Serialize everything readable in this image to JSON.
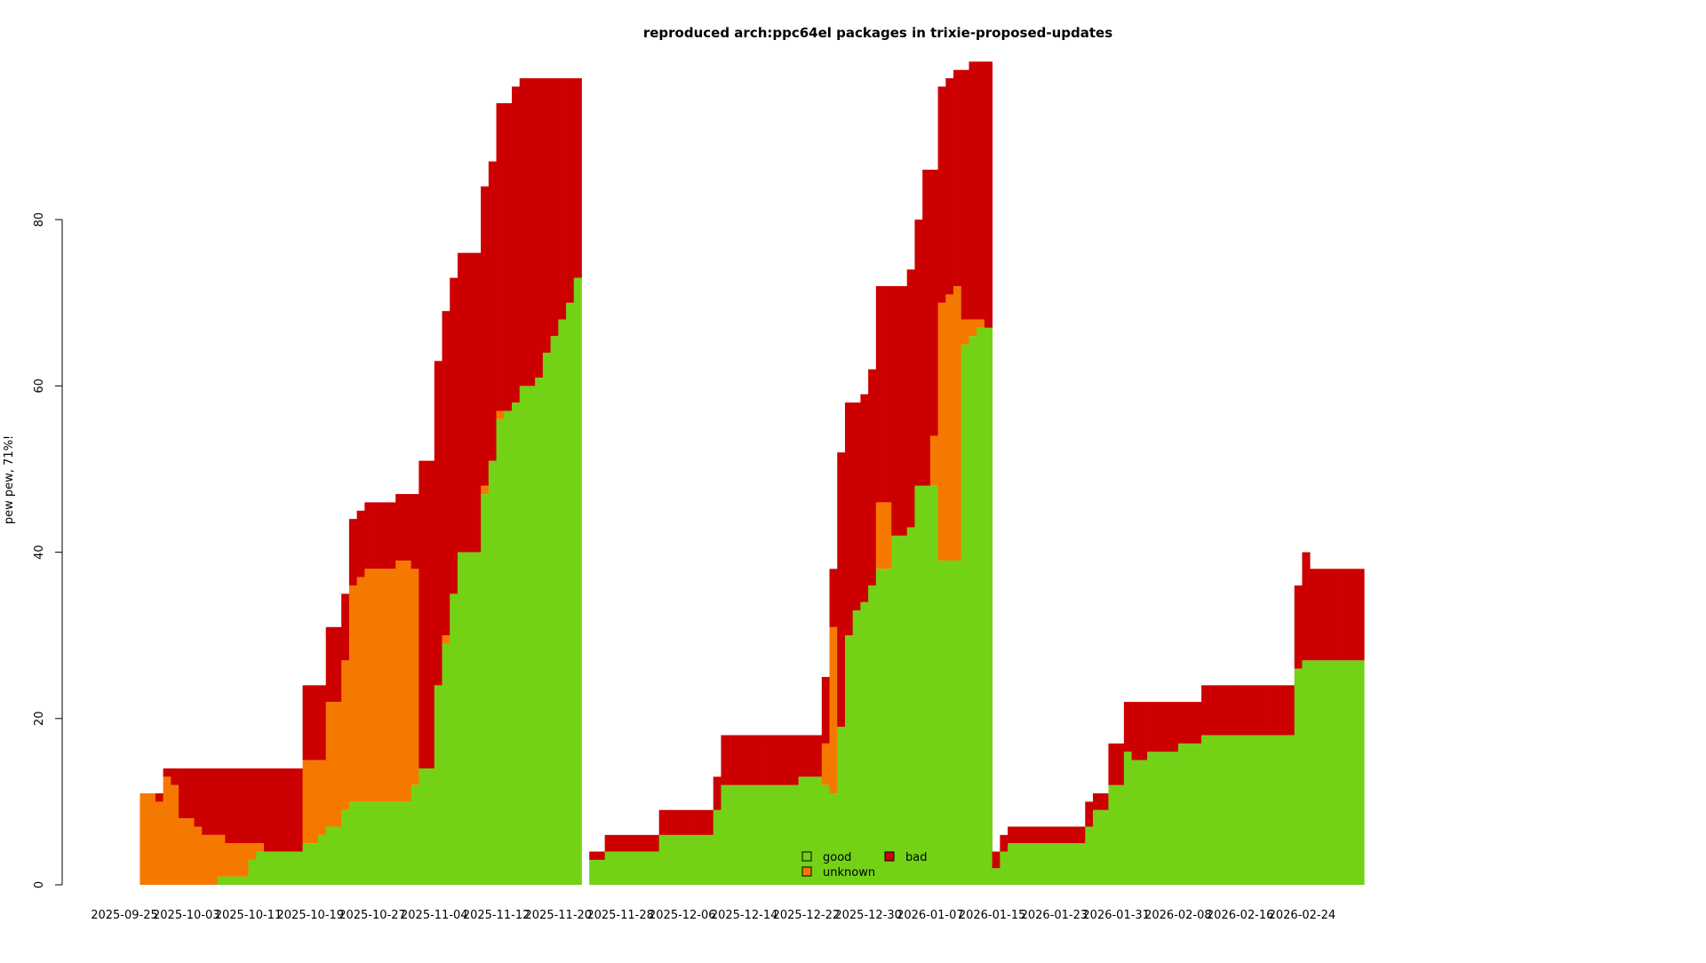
{
  "chart_data": {
    "type": "area",
    "stacked": true,
    "step": true,
    "title": "reproduced arch:ppc64el packages in trixie-proposed-updates",
    "ylabel": "pew pew, 71%!",
    "xlabel": "",
    "ylim": [
      0,
      99
    ],
    "y_ticks": [
      0,
      20,
      40,
      60,
      80
    ],
    "x_start": "2025-09-25",
    "x_tick_labels": [
      "2025-09-25",
      "2025-10-03",
      "2025-10-11",
      "2025-10-19",
      "2025-10-27",
      "2025-11-04",
      "2025-11-12",
      "2025-11-20",
      "2025-11-28",
      "2025-12-06",
      "2025-12-14",
      "2025-12-22",
      "2025-12-30",
      "2026-01-07",
      "2026-01-15",
      "2026-01-23",
      "2026-01-31",
      "2026-02-08",
      "2026-02-16",
      "2026-02-24"
    ],
    "legend": {
      "placement": "bottom-center",
      "columns": 2
    },
    "colors": {
      "good": "#73d216",
      "unknown": "#f57900",
      "bad": "#cc0000"
    },
    "series_names": [
      "good",
      "unknown",
      "bad"
    ],
    "rows": [
      [
        "2025-09-27",
        0,
        11,
        0
      ],
      [
        "2025-09-28",
        0,
        11,
        0
      ],
      [
        "2025-09-29",
        0,
        10,
        1
      ],
      [
        "2025-09-30",
        0,
        13,
        1
      ],
      [
        "2025-10-01",
        0,
        12,
        2
      ],
      [
        "2025-10-02",
        0,
        8,
        6
      ],
      [
        "2025-10-03",
        0,
        8,
        6
      ],
      [
        "2025-10-04",
        0,
        7,
        7
      ],
      [
        "2025-10-05",
        0,
        6,
        8
      ],
      [
        "2025-10-06",
        0,
        6,
        8
      ],
      [
        "2025-10-07",
        1,
        5,
        8
      ],
      [
        "2025-10-08",
        1,
        4,
        9
      ],
      [
        "2025-10-09",
        1,
        4,
        9
      ],
      [
        "2025-10-10",
        1,
        4,
        9
      ],
      [
        "2025-10-11",
        3,
        2,
        9
      ],
      [
        "2025-10-12",
        4,
        1,
        9
      ],
      [
        "2025-10-13",
        4,
        0,
        10
      ],
      [
        "2025-10-14",
        4,
        0,
        10
      ],
      [
        "2025-10-15",
        4,
        0,
        10
      ],
      [
        "2025-10-16",
        4,
        0,
        10
      ],
      [
        "2025-10-17",
        4,
        0,
        10
      ],
      [
        "2025-10-18",
        5,
        10,
        9
      ],
      [
        "2025-10-19",
        5,
        10,
        9
      ],
      [
        "2025-10-20",
        6,
        9,
        9
      ],
      [
        "2025-10-21",
        7,
        15,
        9
      ],
      [
        "2025-10-22",
        7,
        15,
        9
      ],
      [
        "2025-10-23",
        9,
        18,
        8
      ],
      [
        "2025-10-24",
        10,
        26,
        8
      ],
      [
        "2025-10-25",
        10,
        27,
        8
      ],
      [
        "2025-10-26",
        10,
        28,
        8
      ],
      [
        "2025-10-27",
        10,
        28,
        8
      ],
      [
        "2025-10-28",
        10,
        28,
        8
      ],
      [
        "2025-10-29",
        10,
        28,
        8
      ],
      [
        "2025-10-30",
        10,
        29,
        8
      ],
      [
        "2025-10-31",
        10,
        29,
        8
      ],
      [
        "2025-11-01",
        12,
        26,
        9
      ],
      [
        "2025-11-02",
        14,
        0,
        37
      ],
      [
        "2025-11-03",
        14,
        0,
        37
      ],
      [
        "2025-11-04",
        24,
        0,
        39
      ],
      [
        "2025-11-05",
        29,
        1,
        39
      ],
      [
        "2025-11-06",
        35,
        0,
        38
      ],
      [
        "2025-11-07",
        40,
        0,
        36
      ],
      [
        "2025-11-08",
        40,
        0,
        36
      ],
      [
        "2025-11-09",
        40,
        0,
        36
      ],
      [
        "2025-11-10",
        47,
        1,
        36
      ],
      [
        "2025-11-11",
        51,
        0,
        36
      ],
      [
        "2025-11-12",
        56,
        1,
        37
      ],
      [
        "2025-11-13",
        57,
        0,
        37
      ],
      [
        "2025-11-14",
        58,
        0,
        38
      ],
      [
        "2025-11-15",
        60,
        0,
        37
      ],
      [
        "2025-11-16",
        60,
        0,
        37
      ],
      [
        "2025-11-17",
        61,
        0,
        36
      ],
      [
        "2025-11-18",
        64,
        0,
        33
      ],
      [
        "2025-11-19",
        66,
        0,
        31
      ],
      [
        "2025-11-20",
        68,
        0,
        29
      ],
      [
        "2025-11-21",
        70,
        0,
        27
      ],
      [
        "2025-11-22",
        73,
        0,
        24
      ],
      [
        "2025-11-24",
        3,
        0,
        1
      ],
      [
        "2025-11-25",
        3,
        0,
        1
      ],
      [
        "2025-11-26",
        4,
        0,
        2
      ],
      [
        "2025-11-27",
        4,
        0,
        2
      ],
      [
        "2025-11-28",
        4,
        0,
        2
      ],
      [
        "2025-11-29",
        4,
        0,
        2
      ],
      [
        "2025-11-30",
        4,
        0,
        2
      ],
      [
        "2025-12-01",
        4,
        0,
        2
      ],
      [
        "2025-12-02",
        4,
        0,
        2
      ],
      [
        "2025-12-03",
        6,
        0,
        3
      ],
      [
        "2025-12-04",
        6,
        0,
        3
      ],
      [
        "2025-12-05",
        6,
        0,
        3
      ],
      [
        "2025-12-06",
        6,
        0,
        3
      ],
      [
        "2025-12-07",
        6,
        0,
        3
      ],
      [
        "2025-12-08",
        6,
        0,
        3
      ],
      [
        "2025-12-09",
        6,
        0,
        3
      ],
      [
        "2025-12-10",
        9,
        0,
        4
      ],
      [
        "2025-12-11",
        12,
        0,
        6
      ],
      [
        "2025-12-12",
        12,
        0,
        6
      ],
      [
        "2025-12-13",
        12,
        0,
        6
      ],
      [
        "2025-12-14",
        12,
        0,
        6
      ],
      [
        "2025-12-15",
        12,
        0,
        6
      ],
      [
        "2025-12-16",
        12,
        0,
        6
      ],
      [
        "2025-12-17",
        12,
        0,
        6
      ],
      [
        "2025-12-18",
        12,
        0,
        6
      ],
      [
        "2025-12-19",
        12,
        0,
        6
      ],
      [
        "2025-12-20",
        12,
        0,
        6
      ],
      [
        "2025-12-21",
        13,
        0,
        5
      ],
      [
        "2025-12-22",
        13,
        0,
        5
      ],
      [
        "2025-12-23",
        13,
        0,
        5
      ],
      [
        "2025-12-24",
        12,
        5,
        8
      ],
      [
        "2025-12-25",
        11,
        20,
        7
      ],
      [
        "2025-12-26",
        19,
        0,
        33
      ],
      [
        "2025-12-27",
        30,
        0,
        28
      ],
      [
        "2025-12-28",
        33,
        0,
        25
      ],
      [
        "2025-12-29",
        34,
        0,
        25
      ],
      [
        "2025-12-30",
        36,
        0,
        26
      ],
      [
        "2025-12-31",
        38,
        8,
        26
      ],
      [
        "2026-01-01",
        38,
        8,
        26
      ],
      [
        "2026-01-02",
        42,
        0,
        30
      ],
      [
        "2026-01-03",
        42,
        0,
        30
      ],
      [
        "2026-01-04",
        43,
        0,
        31
      ],
      [
        "2026-01-05",
        48,
        0,
        32
      ],
      [
        "2026-01-06",
        48,
        0,
        38
      ],
      [
        "2026-01-07",
        48,
        6,
        32
      ],
      [
        "2026-01-08",
        39,
        31,
        26
      ],
      [
        "2026-01-09",
        39,
        32,
        26
      ],
      [
        "2026-01-10",
        39,
        33,
        26
      ],
      [
        "2026-01-11",
        65,
        3,
        30
      ],
      [
        "2026-01-12",
        66,
        2,
        31
      ],
      [
        "2026-01-13",
        67,
        1,
        31
      ],
      [
        "2026-01-14",
        67,
        0,
        32
      ],
      [
        "2026-01-15",
        2,
        0,
        2
      ],
      [
        "2026-01-16",
        4,
        0,
        2
      ],
      [
        "2026-01-17",
        5,
        0,
        2
      ],
      [
        "2026-01-18",
        5,
        0,
        2
      ],
      [
        "2026-01-19",
        5,
        0,
        2
      ],
      [
        "2026-01-20",
        5,
        0,
        2
      ],
      [
        "2026-01-21",
        5,
        0,
        2
      ],
      [
        "2026-01-22",
        5,
        0,
        2
      ],
      [
        "2026-01-23",
        5,
        0,
        2
      ],
      [
        "2026-01-24",
        5,
        0,
        2
      ],
      [
        "2026-01-25",
        5,
        0,
        2
      ],
      [
        "2026-01-26",
        5,
        0,
        2
      ],
      [
        "2026-01-27",
        7,
        0,
        3
      ],
      [
        "2026-01-28",
        9,
        0,
        2
      ],
      [
        "2026-01-29",
        9,
        0,
        2
      ],
      [
        "2026-01-30",
        12,
        0,
        5
      ],
      [
        "2026-01-31",
        12,
        0,
        5
      ],
      [
        "2026-02-01",
        16,
        0,
        6
      ],
      [
        "2026-02-02",
        15,
        0,
        7
      ],
      [
        "2026-02-03",
        15,
        0,
        7
      ],
      [
        "2026-02-04",
        16,
        0,
        6
      ],
      [
        "2026-02-05",
        16,
        0,
        6
      ],
      [
        "2026-02-06",
        16,
        0,
        6
      ],
      [
        "2026-02-07",
        16,
        0,
        6
      ],
      [
        "2026-02-08",
        17,
        0,
        5
      ],
      [
        "2026-02-09",
        17,
        0,
        5
      ],
      [
        "2026-02-10",
        17,
        0,
        5
      ],
      [
        "2026-02-11",
        18,
        0,
        6
      ],
      [
        "2026-02-12",
        18,
        0,
        6
      ],
      [
        "2026-02-13",
        18,
        0,
        6
      ],
      [
        "2026-02-14",
        18,
        0,
        6
      ],
      [
        "2026-02-15",
        18,
        0,
        6
      ],
      [
        "2026-02-16",
        18,
        0,
        6
      ],
      [
        "2026-02-17",
        18,
        0,
        6
      ],
      [
        "2026-02-18",
        18,
        0,
        6
      ],
      [
        "2026-02-19",
        18,
        0,
        6
      ],
      [
        "2026-02-20",
        18,
        0,
        6
      ],
      [
        "2026-02-21",
        18,
        0,
        6
      ],
      [
        "2026-02-22",
        18,
        0,
        6
      ],
      [
        "2026-02-23",
        26,
        0,
        10
      ],
      [
        "2026-02-24",
        27,
        0,
        13
      ],
      [
        "2026-02-25",
        27,
        0,
        11
      ],
      [
        "2026-02-26",
        27,
        0,
        11
      ],
      [
        "2026-02-27",
        27,
        0,
        11
      ],
      [
        "2026-02-28",
        27,
        0,
        11
      ],
      [
        "2026-03-01",
        27,
        0,
        11
      ],
      [
        "2026-03-02",
        27,
        0,
        11
      ],
      [
        "2026-03-03",
        27,
        0,
        11
      ]
    ]
  }
}
